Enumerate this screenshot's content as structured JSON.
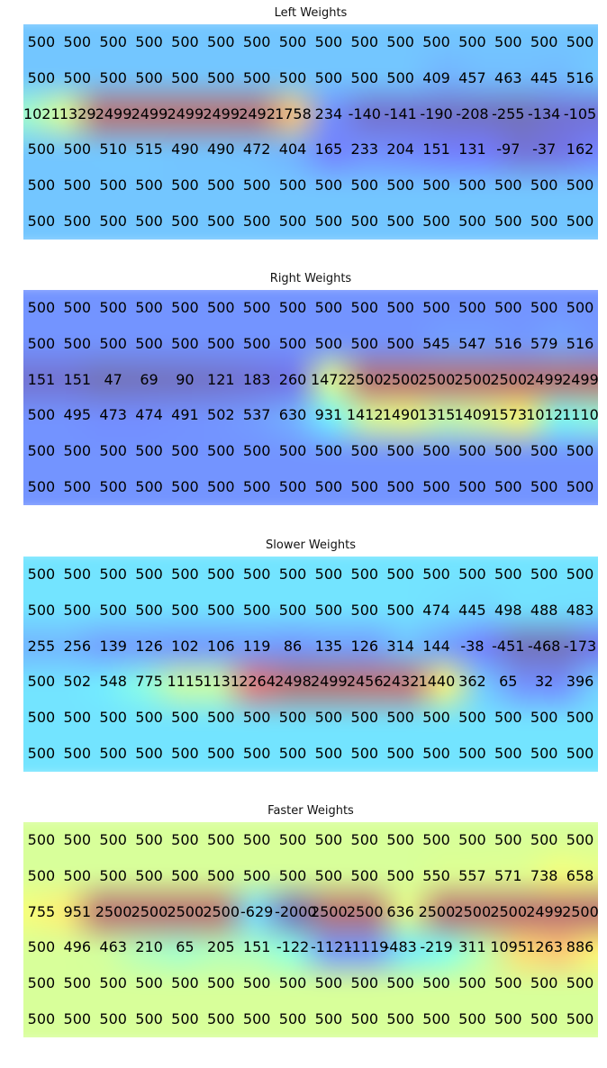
{
  "chart_data": [
    {
      "type": "heatmap",
      "title": "Left Weights",
      "values": [
        [
          500,
          500,
          500,
          500,
          500,
          500,
          500,
          500,
          500,
          500,
          500,
          500,
          500,
          500,
          500,
          500
        ],
        [
          500,
          500,
          500,
          500,
          500,
          500,
          500,
          500,
          500,
          500,
          500,
          409,
          457,
          463,
          445,
          516
        ],
        [
          1021,
          1329,
          2499,
          2499,
          2499,
          2499,
          2492,
          1758,
          234,
          -140,
          -141,
          -190,
          -208,
          -255,
          -134,
          -105
        ],
        [
          500,
          500,
          510,
          515,
          490,
          490,
          472,
          404,
          165,
          233,
          204,
          151,
          131,
          -97,
          -37,
          162
        ],
        [
          500,
          500,
          500,
          500,
          500,
          500,
          500,
          500,
          500,
          500,
          500,
          500,
          500,
          500,
          500,
          500
        ],
        [
          500,
          500,
          500,
          500,
          500,
          500,
          500,
          500,
          500,
          500,
          500,
          500,
          500,
          500,
          500,
          500
        ]
      ]
    },
    {
      "type": "heatmap",
      "title": "Right Weights",
      "values": [
        [
          500,
          500,
          500,
          500,
          500,
          500,
          500,
          500,
          500,
          500,
          500,
          500,
          500,
          500,
          500,
          500
        ],
        [
          500,
          500,
          500,
          500,
          500,
          500,
          500,
          500,
          500,
          500,
          500,
          545,
          547,
          516,
          579,
          516
        ],
        [
          151,
          151,
          47,
          69,
          90,
          121,
          183,
          260,
          1472,
          2500,
          2500,
          2500,
          2500,
          2500,
          2499,
          2499
        ],
        [
          500,
          495,
          473,
          474,
          491,
          502,
          537,
          630,
          931,
          1412,
          1490,
          1315,
          1409,
          1573,
          1012,
          1110
        ],
        [
          500,
          500,
          500,
          500,
          500,
          500,
          500,
          500,
          500,
          500,
          500,
          500,
          500,
          500,
          500,
          500
        ],
        [
          500,
          500,
          500,
          500,
          500,
          500,
          500,
          500,
          500,
          500,
          500,
          500,
          500,
          500,
          500,
          500
        ]
      ]
    },
    {
      "type": "heatmap",
      "title": "Slower Weights",
      "values": [
        [
          500,
          500,
          500,
          500,
          500,
          500,
          500,
          500,
          500,
          500,
          500,
          500,
          500,
          500,
          500,
          500
        ],
        [
          500,
          500,
          500,
          500,
          500,
          500,
          500,
          500,
          500,
          500,
          500,
          474,
          445,
          498,
          488,
          483
        ],
        [
          255,
          256,
          139,
          126,
          102,
          106,
          119,
          86,
          135,
          126,
          314,
          144,
          -38,
          -451,
          -468,
          -173
        ],
        [
          500,
          502,
          548,
          775,
          1115,
          1131,
          2264,
          2498,
          2499,
          2456,
          2432,
          1440,
          362,
          65,
          32,
          396
        ],
        [
          500,
          500,
          500,
          500,
          500,
          500,
          500,
          500,
          500,
          500,
          500,
          500,
          500,
          500,
          500,
          500
        ],
        [
          500,
          500,
          500,
          500,
          500,
          500,
          500,
          500,
          500,
          500,
          500,
          500,
          500,
          500,
          500,
          500
        ]
      ]
    },
    {
      "type": "heatmap",
      "title": "Faster Weights",
      "values": [
        [
          500,
          500,
          500,
          500,
          500,
          500,
          500,
          500,
          500,
          500,
          500,
          500,
          500,
          500,
          500,
          500
        ],
        [
          500,
          500,
          500,
          500,
          500,
          500,
          500,
          500,
          500,
          500,
          500,
          550,
          557,
          571,
          738,
          658
        ],
        [
          755,
          951,
          2500,
          2500,
          2500,
          2500,
          -629,
          -2000,
          2500,
          2500,
          636,
          2500,
          2500,
          2500,
          2499,
          2500
        ],
        [
          500,
          496,
          463,
          210,
          65,
          205,
          151,
          -122,
          -1121,
          -1119,
          -483,
          -219,
          311,
          1095,
          1263,
          886
        ],
        [
          500,
          500,
          500,
          500,
          500,
          500,
          500,
          500,
          500,
          500,
          500,
          500,
          500,
          500,
          500,
          500
        ],
        [
          500,
          500,
          500,
          500,
          500,
          500,
          500,
          500,
          500,
          500,
          500,
          500,
          500,
          500,
          500,
          500
        ]
      ]
    }
  ]
}
